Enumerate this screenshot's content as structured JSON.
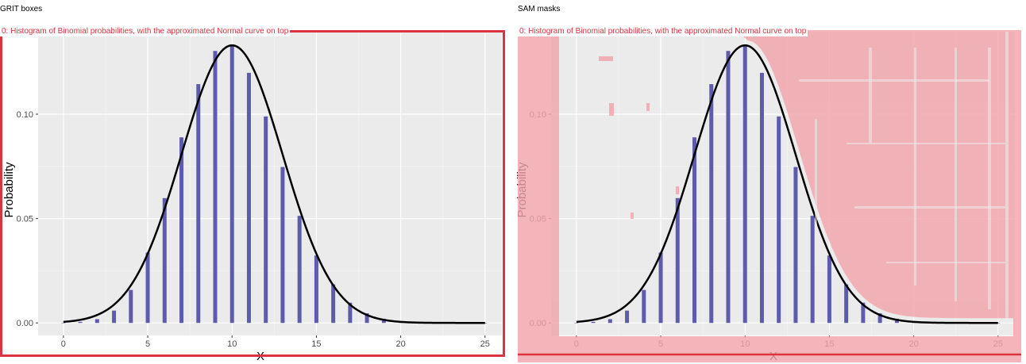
{
  "panels": {
    "left": {
      "title": "GRIT boxes"
    },
    "right": {
      "title": "SAM masks"
    }
  },
  "annotation": {
    "label": "0: Histogram of Binomial probabilities, with the approximated Normal curve on top",
    "color": "#d9343f",
    "mask_color": "#f2a5ab"
  },
  "chart_data": {
    "type": "bar",
    "title": "",
    "xlabel": "X",
    "ylabel": "Probability",
    "x": [
      0,
      1,
      2,
      3,
      4,
      5,
      6,
      7,
      8,
      9,
      10,
      11,
      12,
      13,
      14,
      15,
      16,
      17,
      18,
      19,
      20,
      21,
      22,
      23,
      24,
      25
    ],
    "values": [
      0.0001,
      0.0005,
      0.0018,
      0.0059,
      0.0158,
      0.0337,
      0.0598,
      0.0889,
      0.1144,
      0.1303,
      0.1327,
      0.1198,
      0.0989,
      0.0747,
      0.0513,
      0.0323,
      0.0185,
      0.0097,
      0.0046,
      0.002,
      0.0008,
      0.0003,
      0.0001,
      0.0,
      0.0,
      0.0
    ],
    "normal_curve": {
      "mean": 10,
      "sd": 3
    },
    "xlim": [
      -1.5,
      26
    ],
    "ylim": [
      -0.006,
      0.1395
    ],
    "x_ticks": [
      0,
      5,
      10,
      15,
      20,
      25
    ],
    "x_tick_labels": [
      "0",
      "5",
      "10",
      "15",
      "20",
      "25"
    ],
    "y_ticks": [
      0,
      0.05,
      0.1
    ],
    "y_tick_labels": [
      "0.00",
      "0.05",
      "0.10"
    ],
    "bar_color": "#5f5bab",
    "curve_color": "#000000",
    "panel_background": "#ebebeb",
    "grid": true,
    "legend": "none"
  }
}
